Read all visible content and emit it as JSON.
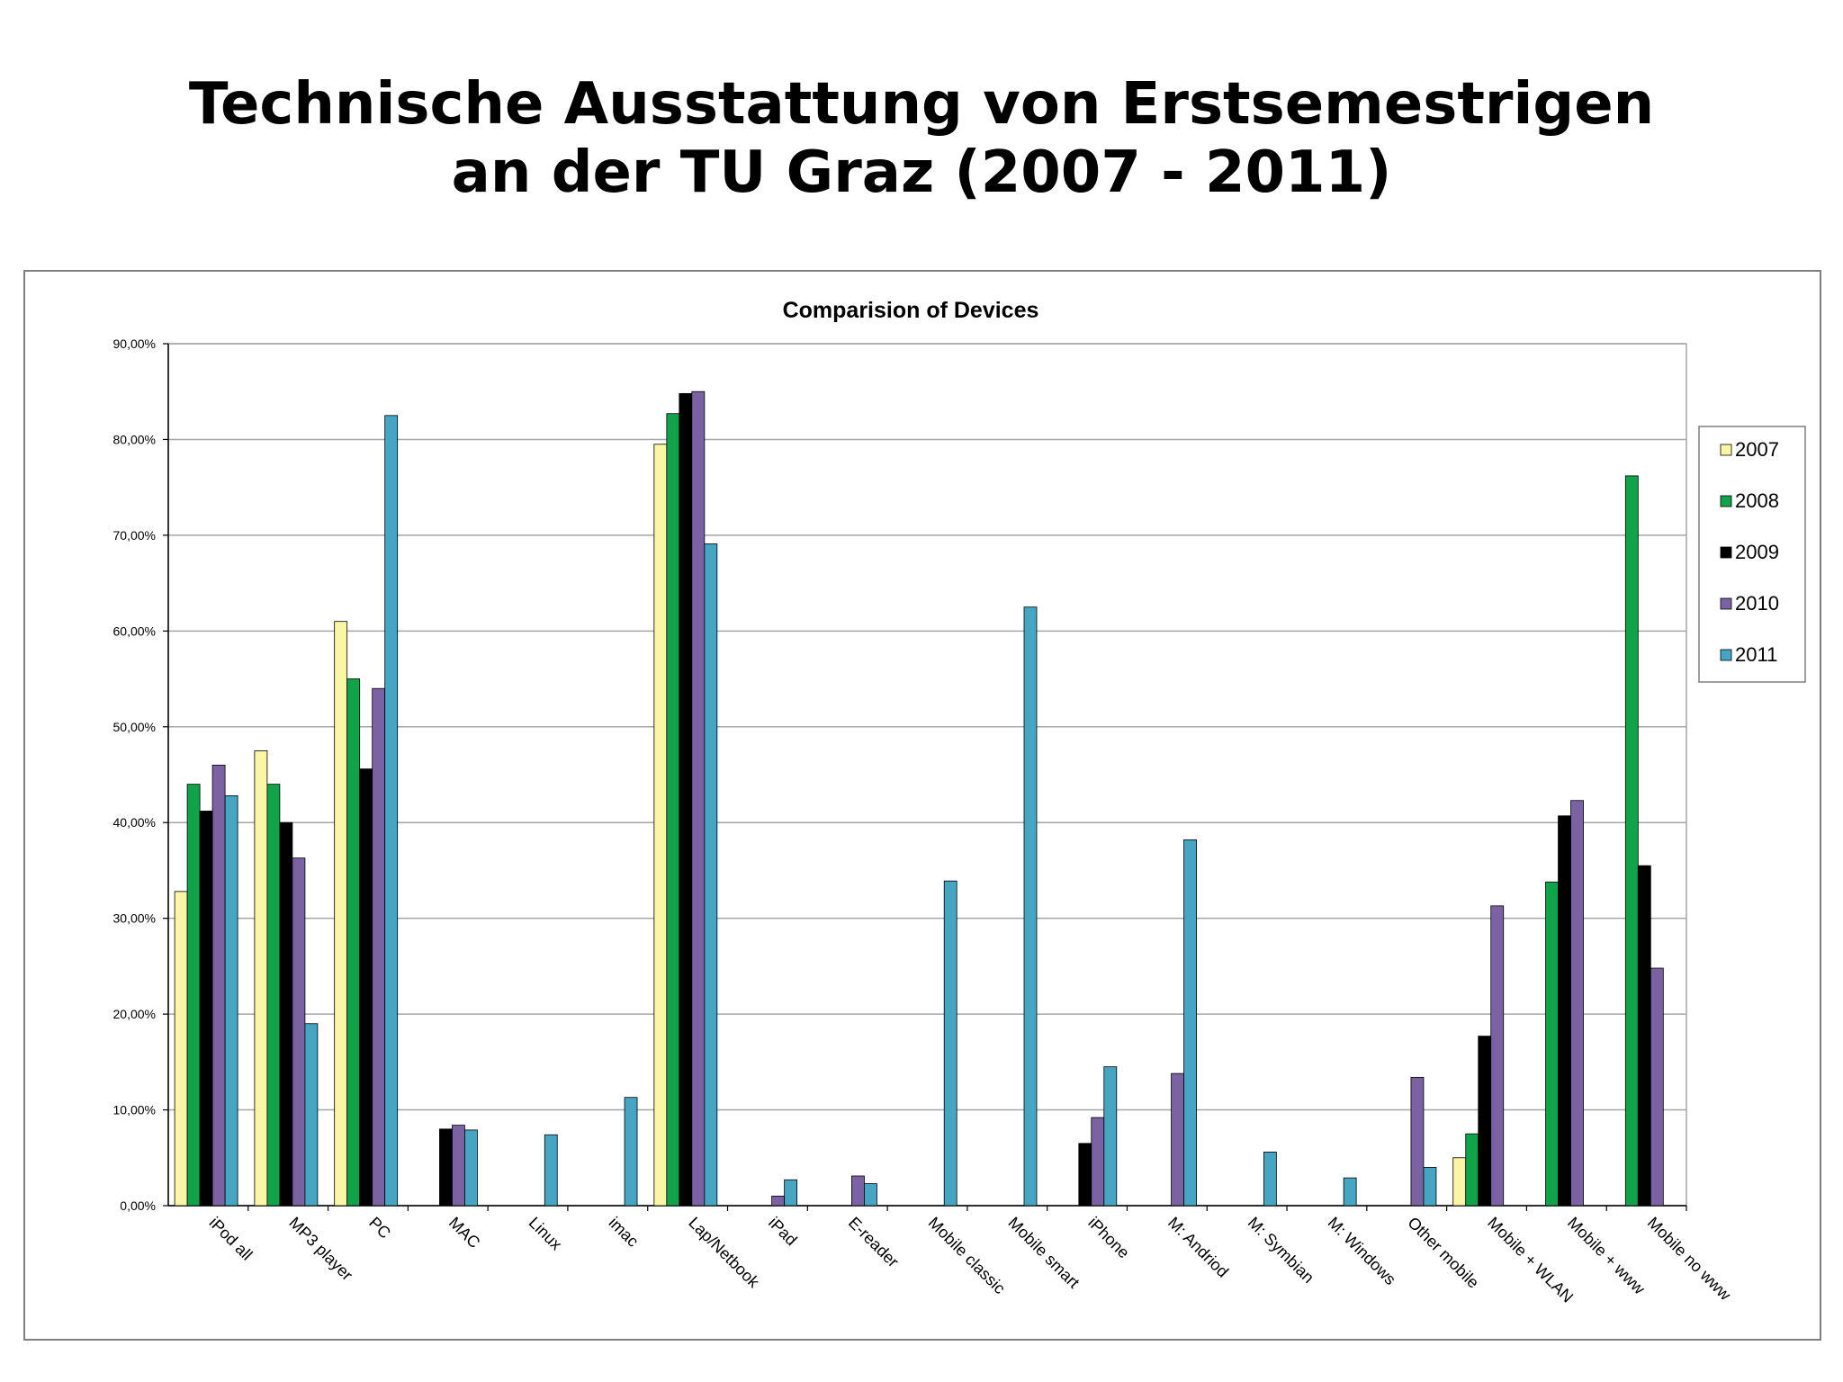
{
  "slide": {
    "title_line1": "Technische Ausstattung von Erstsemestrigen",
    "title_line2": "an der TU Graz (2007 - 2011)"
  },
  "colors": {
    "2007": "#fbf6a6",
    "2008": "#11a34a",
    "2009": "#000000",
    "2010": "#7b62a3",
    "2011": "#45a5c2",
    "gridline": "#a6a6a6",
    "frame": "#7f7f7f"
  },
  "chart_data": {
    "type": "bar",
    "title": "Comparision  of Devices",
    "xlabel": "",
    "ylabel": "",
    "ylim": [
      0,
      90
    ],
    "yticks": [
      "0,00%",
      "10,00%",
      "20,00%",
      "30,00%",
      "40,00%",
      "50,00%",
      "60,00%",
      "70,00%",
      "80,00%",
      "90,00%"
    ],
    "grid": true,
    "legend_position": "right",
    "categories": [
      "iPod all",
      "MP3 player",
      "PC",
      "MAC",
      "Linux",
      "imac",
      "Lap/Netbook",
      "iPad",
      "E-reader",
      "Mobile classic",
      "Mobile smart",
      "iPhone",
      "M: Andriod",
      "M: Symbian",
      "M: Windows",
      "Other mobile",
      "Mobile + WLAN",
      "Mobile + www",
      "Mobile no www"
    ],
    "series": [
      {
        "name": "2007",
        "values": [
          32.8,
          47.5,
          61.0,
          null,
          null,
          null,
          79.5,
          null,
          null,
          null,
          null,
          null,
          null,
          null,
          null,
          null,
          5.0,
          null,
          null
        ]
      },
      {
        "name": "2008",
        "values": [
          44.0,
          44.0,
          55.0,
          null,
          null,
          null,
          82.7,
          null,
          null,
          null,
          null,
          null,
          null,
          null,
          null,
          null,
          7.5,
          33.8,
          76.2
        ]
      },
      {
        "name": "2009",
        "values": [
          41.2,
          40.0,
          45.6,
          8.0,
          null,
          null,
          84.8,
          null,
          null,
          null,
          null,
          6.5,
          null,
          null,
          null,
          null,
          17.7,
          40.7,
          35.5
        ]
      },
      {
        "name": "2010",
        "values": [
          46.0,
          36.3,
          54.0,
          8.4,
          null,
          null,
          85.0,
          1.0,
          3.1,
          null,
          null,
          9.2,
          13.8,
          null,
          null,
          13.4,
          31.3,
          42.3,
          24.8
        ]
      },
      {
        "name": "2011",
        "values": [
          42.8,
          19.0,
          82.5,
          7.9,
          7.4,
          11.3,
          69.1,
          2.7,
          2.3,
          33.9,
          62.5,
          14.5,
          38.2,
          5.6,
          2.9,
          4.0,
          null,
          null,
          null
        ]
      }
    ]
  }
}
